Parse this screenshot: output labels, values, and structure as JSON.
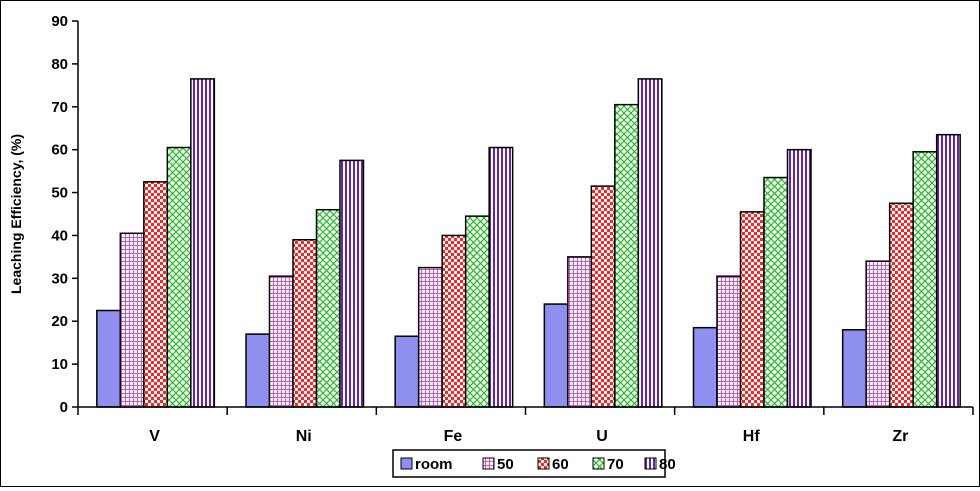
{
  "chart_data": {
    "type": "bar",
    "title": "",
    "xlabel": "",
    "ylabel": "Leaching Efficiency, (%)",
    "ylim": [
      0,
      90
    ],
    "yticks": [
      0,
      10,
      20,
      30,
      40,
      50,
      60,
      70,
      80,
      90
    ],
    "grid": false,
    "legend_position": "bottom",
    "categories": [
      "V",
      "Ni",
      "Fe",
      "U",
      "Hf",
      "Zr"
    ],
    "series": [
      {
        "name": "room",
        "color": "#8f8fef",
        "pattern": "solid",
        "values": [
          22.5,
          17,
          16.5,
          24,
          18.5,
          18
        ]
      },
      {
        "name": "50",
        "color": "#cc66cc",
        "pattern": "grid",
        "values": [
          40.5,
          30.5,
          32.5,
          35,
          30.5,
          34
        ]
      },
      {
        "name": "60",
        "color": "#ff3333",
        "pattern": "checker",
        "values": [
          52.5,
          39,
          40,
          51.5,
          45.5,
          47.5
        ]
      },
      {
        "name": "70",
        "color": "#33cc33",
        "pattern": "crosshatch",
        "values": [
          60.5,
          46,
          44.5,
          70.5,
          53.5,
          59.5
        ]
      },
      {
        "name": "80",
        "color": "#7733aa",
        "pattern": "vstripe",
        "values": [
          76.5,
          57.5,
          60.5,
          76.5,
          60,
          63.5
        ]
      }
    ]
  }
}
